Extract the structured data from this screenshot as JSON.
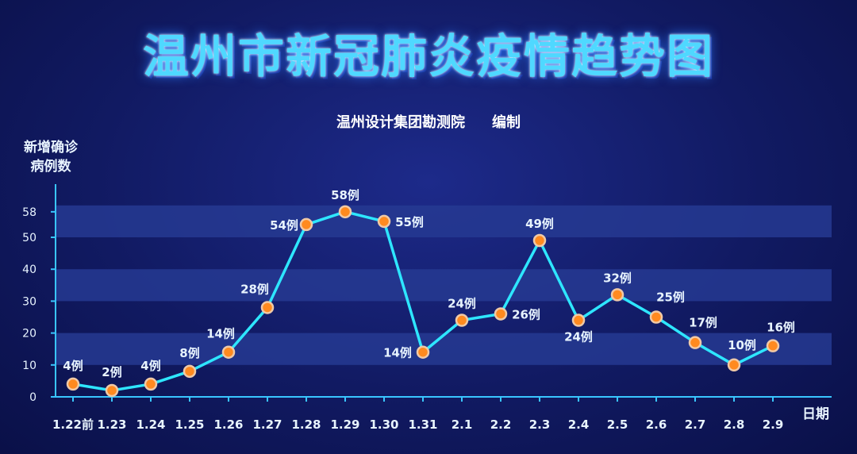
{
  "title": "温州市新冠肺炎疫情趋势图",
  "subtitle": {
    "org": "温州设计集团勘测院",
    "note": "编制"
  },
  "chart_data": {
    "type": "line",
    "ylabel": [
      "新增确诊",
      "病例数"
    ],
    "xlabel": "日期",
    "ylim": [
      0,
      60
    ],
    "y_ticks": [
      0,
      10,
      20,
      30,
      40,
      50,
      58
    ],
    "categories": [
      "1.22前",
      "1.23",
      "1.24",
      "1.25",
      "1.26",
      "1.27",
      "1.28",
      "1.29",
      "1.30",
      "1.31",
      "2.1",
      "2.2",
      "2.3",
      "2.4",
      "2.5",
      "2.6",
      "2.7",
      "2.8",
      "2.9"
    ],
    "values": [
      4,
      2,
      4,
      8,
      14,
      28,
      54,
      58,
      55,
      14,
      24,
      26,
      49,
      24,
      32,
      25,
      17,
      10,
      16
    ],
    "value_labels": [
      "4例",
      "2例",
      "4例",
      "8例",
      "14例",
      "28例",
      "54例",
      "58例",
      "55例",
      "14例",
      "24例",
      "26例",
      "49例",
      "24例",
      "32例",
      "25例",
      "17例",
      "10例",
      "16例"
    ],
    "colors": {
      "line": "#2ee6ff",
      "marker_fill": "#ff8a1f",
      "marker_ring": "#f0c9a6",
      "band": "#263a92",
      "axis": "#39c5ff",
      "label": "#e8f4ff"
    }
  }
}
